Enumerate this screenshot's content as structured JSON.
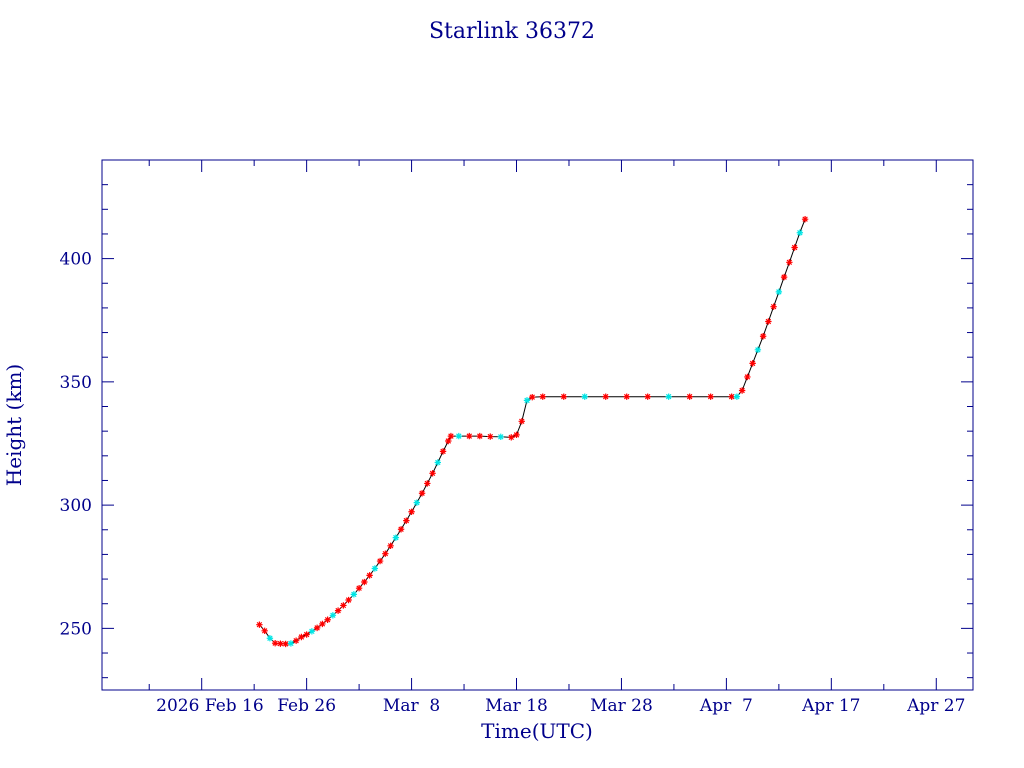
{
  "chart_data": {
    "type": "line",
    "title": "Starlink 36372",
    "xlabel": "Time(UTC)",
    "ylabel": "Height (km)",
    "xlim": [
      "2026-02-06T12:00",
      "2026-04-30T12:00"
    ],
    "ylim": [
      225,
      440
    ],
    "x_tick_labels": [
      "2026 Feb 16",
      "Feb 26",
      "Mar  8",
      "Mar 18",
      "Mar 28",
      "Apr  7",
      "Apr 17",
      "Apr 27"
    ],
    "x_tick_dates": [
      "2026-02-16",
      "2026-02-26",
      "2026-03-08",
      "2026-03-18",
      "2026-03-28",
      "2026-04-07",
      "2026-04-17",
      "2026-04-27"
    ],
    "y_ticks": [
      250,
      300,
      350,
      400
    ],
    "grid": false,
    "colors": {
      "axes": "#00008b",
      "line": "#000000",
      "marker_primary": "#ff0000",
      "marker_secondary": "#00e5e5"
    },
    "series": [
      {
        "points": [
          [
            "2026-02-21T12:00",
            251.5
          ],
          [
            "2026-02-22T00:00",
            249.0
          ],
          [
            "2026-02-22T12:00",
            246.0
          ],
          [
            "2026-02-23T00:00",
            244.0
          ],
          [
            "2026-02-23T12:00",
            243.8
          ],
          [
            "2026-02-24T00:00",
            243.7
          ],
          [
            "2026-02-24T12:00",
            243.9
          ],
          [
            "2026-02-25T00:00",
            245.0
          ],
          [
            "2026-02-25T12:00",
            246.5
          ],
          [
            "2026-02-26T00:00",
            247.5
          ],
          [
            "2026-02-26T12:00",
            248.8
          ],
          [
            "2026-02-27T00:00",
            250.2
          ],
          [
            "2026-02-27T12:00",
            251.8
          ],
          [
            "2026-02-28T00:00",
            253.5
          ],
          [
            "2026-02-28T12:00",
            255.3
          ],
          [
            "2026-03-01T00:00",
            257.2
          ],
          [
            "2026-03-01T12:00",
            259.3
          ],
          [
            "2026-03-02T00:00",
            261.5
          ],
          [
            "2026-03-02T12:00",
            263.8
          ],
          [
            "2026-03-03T00:00",
            266.3
          ],
          [
            "2026-03-03T12:00",
            268.8
          ],
          [
            "2026-03-04T00:00",
            271.5
          ],
          [
            "2026-03-04T12:00",
            274.3
          ],
          [
            "2026-03-05T00:00",
            277.3
          ],
          [
            "2026-03-05T12:00",
            280.3
          ],
          [
            "2026-03-06T00:00",
            283.5
          ],
          [
            "2026-03-06T12:00",
            286.8
          ],
          [
            "2026-03-07T00:00",
            290.2
          ],
          [
            "2026-03-07T12:00",
            293.7
          ],
          [
            "2026-03-08T00:00",
            297.3
          ],
          [
            "2026-03-08T12:00",
            301.0
          ],
          [
            "2026-03-09T00:00",
            304.8
          ],
          [
            "2026-03-09T12:00",
            308.8
          ],
          [
            "2026-03-10T00:00",
            312.9
          ],
          [
            "2026-03-10T12:00",
            317.3
          ],
          [
            "2026-03-11T00:00",
            321.8
          ],
          [
            "2026-03-11T12:00",
            326.0
          ],
          [
            "2026-03-11T18:00",
            328.0
          ],
          [
            "2026-03-12T12:00",
            328.0
          ],
          [
            "2026-03-13T12:00",
            328.0
          ],
          [
            "2026-03-14T12:00",
            328.0
          ],
          [
            "2026-03-15T12:00",
            327.8
          ],
          [
            "2026-03-16T12:00",
            327.7
          ],
          [
            "2026-03-17T12:00",
            327.5
          ],
          [
            "2026-03-18T00:00",
            328.5
          ],
          [
            "2026-03-18T12:00",
            334.0
          ],
          [
            "2026-03-19T00:00",
            342.5
          ],
          [
            "2026-03-19T12:00",
            343.8
          ],
          [
            "2026-03-20T12:00",
            344.0
          ],
          [
            "2026-03-22T12:00",
            344.0
          ],
          [
            "2026-03-24T12:00",
            344.0
          ],
          [
            "2026-03-26T12:00",
            344.0
          ],
          [
            "2026-03-28T12:00",
            344.0
          ],
          [
            "2026-03-30T12:00",
            344.0
          ],
          [
            "2026-04-01T12:00",
            344.0
          ],
          [
            "2026-04-03T12:00",
            344.0
          ],
          [
            "2026-04-05T12:00",
            344.0
          ],
          [
            "2026-04-07T12:00",
            344.0
          ],
          [
            "2026-04-08T00:00",
            344.0
          ],
          [
            "2026-04-08T12:00",
            346.5
          ],
          [
            "2026-04-09T00:00",
            352.0
          ],
          [
            "2026-04-09T12:00",
            357.5
          ],
          [
            "2026-04-10T00:00",
            363.0
          ],
          [
            "2026-04-10T12:00",
            368.5
          ],
          [
            "2026-04-11T00:00",
            374.5
          ],
          [
            "2026-04-11T12:00",
            380.5
          ],
          [
            "2026-04-12T00:00",
            386.5
          ],
          [
            "2026-04-12T12:00",
            392.5
          ],
          [
            "2026-04-13T00:00",
            398.5
          ],
          [
            "2026-04-13T12:00",
            404.5
          ],
          [
            "2026-04-14T00:00",
            410.5
          ],
          [
            "2026-04-14T12:00",
            416.0
          ]
        ]
      }
    ]
  }
}
